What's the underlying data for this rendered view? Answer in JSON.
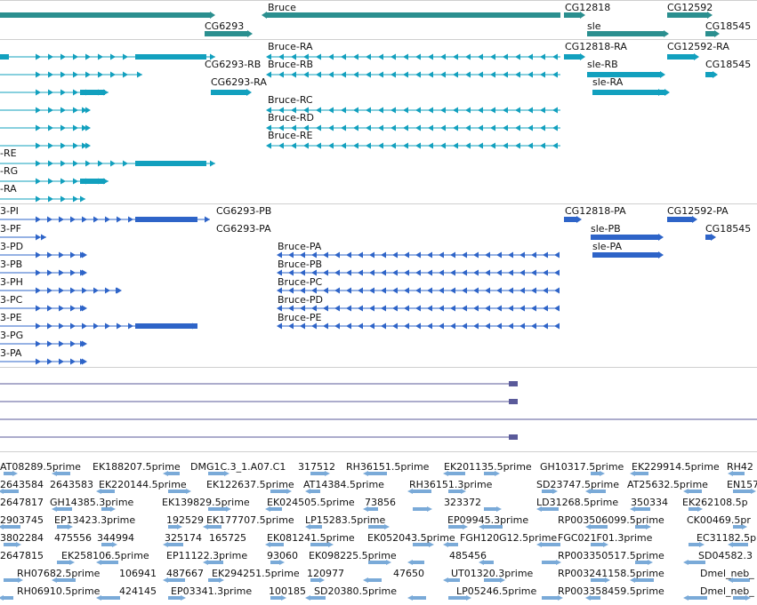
{
  "colors": {
    "gene": "#2b8f8f",
    "transcript": "#12a0be",
    "cds": "#2e64c8",
    "intron_line": "#5a5a9a",
    "est": "#7aaad8",
    "separator": "#cfcfcf"
  },
  "tracks": {
    "genes": {
      "labels": [
        "Bruce",
        "CG6293",
        "CG12818",
        "sle",
        "CG12592",
        "CG18545"
      ]
    },
    "transcripts": {
      "labels": [
        "Bruce-RA",
        "CG12818-RA",
        "CG12592-RA",
        "CG6293-RB",
        "Bruce-RB",
        "sle-RB",
        "CG18545",
        "CG6293-RA",
        "sle-RA",
        "Bruce-RC",
        "Bruce-RD",
        "Bruce-RE",
        "-RE",
        "-RG",
        "-RA"
      ]
    },
    "proteins": {
      "labels": [
        "3-PI",
        "CG6293-PB",
        "CG12818-PA",
        "CG12592-PA",
        "3-PF",
        "CG6293-PA",
        "sle-PB",
        "CG18545",
        "3-PD",
        "Bruce-PA",
        "sle-PA",
        "3-PB",
        "Bruce-PB",
        "3-PH",
        "Bruce-PC",
        "3-PC",
        "Bruce-PD",
        "3-PE",
        "Bruce-PE",
        "3-PG",
        "3-PA"
      ]
    },
    "ests": {
      "labels": [
        "AT08289.5prime",
        "EK188207.5prime",
        "DMG1C.3_1.A07.C1",
        "317512",
        "RH36151.5prime",
        "EK201135.5prime",
        "GH10317.5prime",
        "EK229914.5prime",
        "RH42",
        "2643584",
        "2643583",
        "EK220144.5prime",
        "EK122637.5prime",
        "AT14384.5prime",
        "RH36151.3prime",
        "SD23747.5prime",
        "AT25632.5prime",
        "EN157",
        "2647817",
        "GH14385.3prime",
        "EK139829.5prime",
        "EK024505.5prime",
        "73856",
        "323372",
        "LD31268.5prime",
        "350334",
        "EK262108.5p",
        "2903745",
        "EP13423.3prime",
        "192529",
        "EK177707.5prime",
        "LP15283.5prime",
        "EP09945.3prime",
        "RP003506099.5prime",
        "CK00469.5pr",
        "3802284",
        "475556",
        "344994",
        "325174",
        "165725",
        "EK081241.5prime",
        "EK052043.5prime",
        "FGH120G12.5prime",
        "FGC021F01.3prime",
        "EC31182.5p",
        "2647815",
        "EK258106.5prime",
        "EP11122.3prime",
        "93060",
        "EK098225.5prime",
        "485456",
        "RP003350517.5prime",
        "SD04582.3",
        "RH07682.5prime",
        "106941",
        "487667",
        "EK294251.5prime",
        "120977",
        "47650",
        "UT01320.3prime",
        "RP003241158.5prime",
        "Dmel_neb_",
        "RH06910.5prime",
        "424145",
        "EP03341.3prime",
        "100185",
        "SD20380.5prime",
        "LP05246.5prime",
        "RP003358459.5prime",
        "Dmel_neb_"
      ]
    }
  }
}
